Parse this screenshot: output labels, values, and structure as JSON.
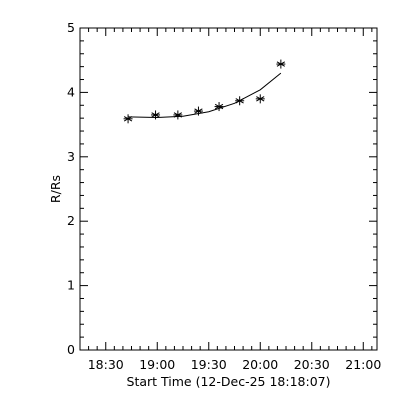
{
  "chart_data": {
    "type": "scatter",
    "title": "",
    "xlabel": "Start Time (12-Dec-25 18:18:07)",
    "ylabel": "R/Rs",
    "x_ticks": [
      "18:30",
      "19:00",
      "19:30",
      "20:00",
      "20:30",
      "21:00"
    ],
    "x_tick_minutes": [
      30,
      60,
      90,
      120,
      150,
      180
    ],
    "y_ticks": [
      "0",
      "1",
      "2",
      "3",
      "4",
      "5"
    ],
    "xlim": [
      "18:15",
      "21:08"
    ],
    "ylim": [
      0,
      5
    ],
    "series": [
      {
        "marker": "asterisk",
        "x": [
          "18:43",
          "18:59",
          "19:12",
          "19:24",
          "19:36",
          "19:48",
          "20:00",
          "20:12"
        ],
        "y": [
          3.59,
          3.65,
          3.65,
          3.71,
          3.78,
          3.87,
          3.9,
          4.44
        ]
      }
    ],
    "fit_line": {
      "x": [
        "18:43",
        "19:00",
        "19:15",
        "19:30",
        "19:45",
        "20:00",
        "20:12"
      ],
      "y": [
        3.62,
        3.61,
        3.63,
        3.7,
        3.83,
        4.04,
        4.3
      ]
    },
    "grid": false,
    "legend": "none",
    "colors": {
      "foreground": "#000000",
      "background": "#ffffff"
    }
  }
}
